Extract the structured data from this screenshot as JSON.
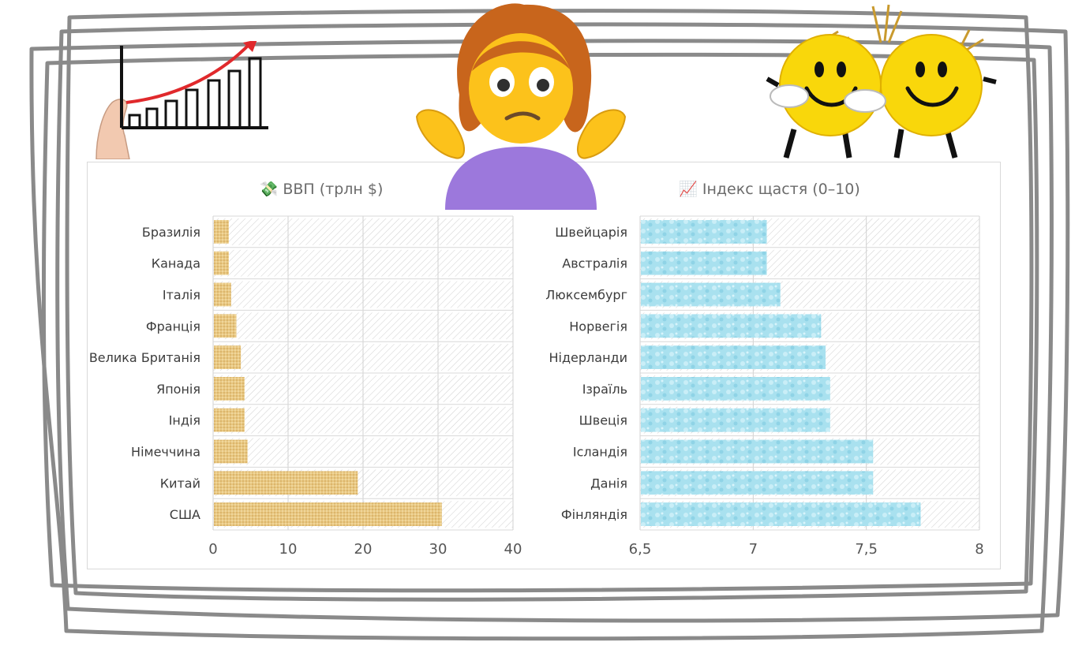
{
  "chart_data": [
    {
      "type": "bar",
      "orientation": "horizontal",
      "title": "ВВП (трлн $)",
      "title_icon": "money-with-wings-icon",
      "categories": [
        "Бразилія",
        "Канада",
        "Італія",
        "Франція",
        "Велика Британія",
        "Японія",
        "Індія",
        "Німеччина",
        "Китай",
        "США"
      ],
      "values": [
        2.1,
        2.1,
        2.4,
        3.1,
        3.7,
        4.2,
        4.2,
        4.6,
        19.3,
        30.5
      ],
      "xlim": [
        0,
        40
      ],
      "xticks": [
        0,
        10,
        20,
        30,
        40
      ],
      "xtick_labels": [
        "0",
        "10",
        "20",
        "30",
        "40"
      ],
      "grid": true,
      "bar_color": "#e8c882",
      "background_pattern": "diagonal-hatch"
    },
    {
      "type": "bar",
      "orientation": "horizontal",
      "title": "Індекс щастя (0–10)",
      "title_icon": "chart-increasing-icon",
      "categories": [
        "Швейцарія",
        "Австралія",
        "Люксембург",
        "Норвегія",
        "Нідерланди",
        "Ізраїль",
        "Швеція",
        "Ісландія",
        "Данія",
        "Фінляндія"
      ],
      "values": [
        7.06,
        7.06,
        7.12,
        7.3,
        7.32,
        7.34,
        7.34,
        7.53,
        7.53,
        7.74
      ],
      "xlim": [
        6.5,
        8
      ],
      "xticks": [
        6.5,
        7,
        7.5,
        8
      ],
      "xtick_labels": [
        "6,5",
        "7",
        "7,5",
        "8"
      ],
      "grid": true,
      "bar_color": "#a9e1ef",
      "background_pattern": "diagonal-hatch"
    }
  ],
  "decorations": {
    "growth_chart_drawing": "growth-chart-sketch-icon",
    "shrugging_woman": "shrugging-woman-emoji-icon",
    "smiley_couple": "smiley-couple-icon"
  }
}
